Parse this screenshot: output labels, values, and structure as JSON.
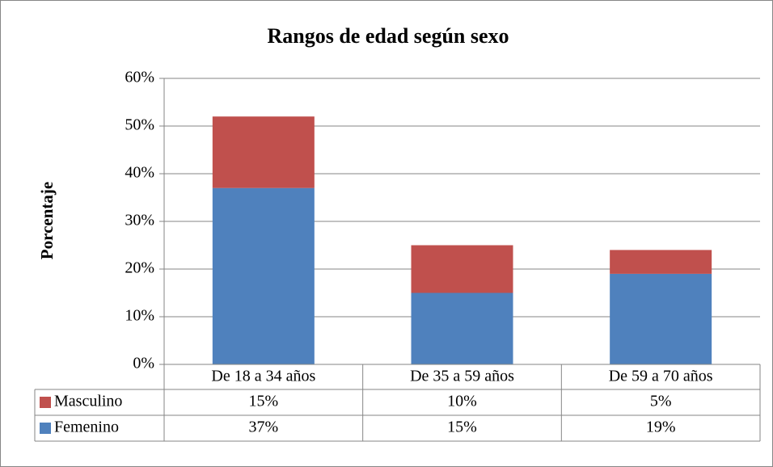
{
  "chart_data": {
    "type": "stacked_bar",
    "title": "Rangos de edad según sexo",
    "y_label": "Porcentaje",
    "categories": [
      "De 18 a 34 años",
      "De 35 a 59 años",
      "De 59 a 70 años"
    ],
    "series": [
      {
        "name": "Femenino",
        "color": "#4f81bd",
        "values": [
          37,
          15,
          19
        ],
        "value_labels": [
          "37%",
          "15%",
          "19%"
        ]
      },
      {
        "name": "Masculino",
        "color": "#c0504d",
        "values": [
          15,
          10,
          5
        ],
        "value_labels": [
          "15%",
          "10%",
          "5%"
        ]
      }
    ],
    "ylim": [
      0,
      60
    ],
    "yticks": [
      {
        "value": 0,
        "label": "0%"
      },
      {
        "value": 10,
        "label": "10%"
      },
      {
        "value": 20,
        "label": "20%"
      },
      {
        "value": 30,
        "label": "30%"
      },
      {
        "value": 40,
        "label": "40%"
      },
      {
        "value": 50,
        "label": "50%"
      },
      {
        "value": 60,
        "label": "60%"
      }
    ],
    "grid": true
  }
}
